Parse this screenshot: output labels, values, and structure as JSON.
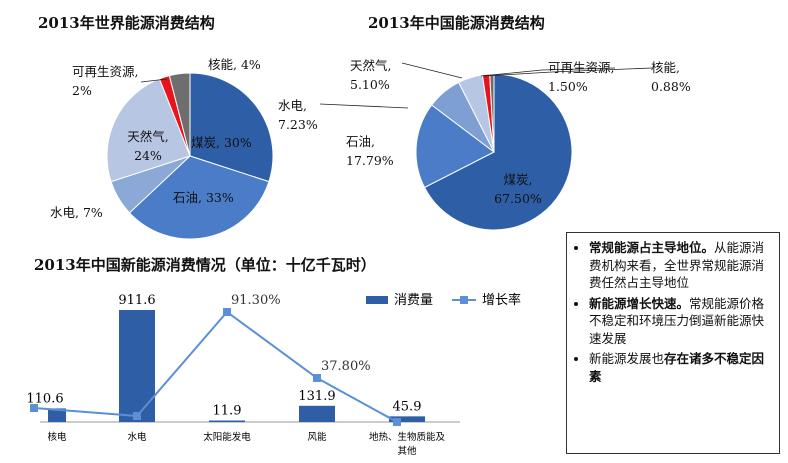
{
  "chart_data": [
    {
      "type": "pie",
      "title": "2013年世界能源消费结构",
      "slices": [
        {
          "label": "煤炭",
          "value": 30,
          "value_text": "30%",
          "color": "#2e5fa6"
        },
        {
          "label": "石油",
          "value": 33,
          "value_text": "33%",
          "color": "#4a7cc7"
        },
        {
          "label": "水电",
          "value": 7,
          "value_text": "7%",
          "color": "#8aa9d6"
        },
        {
          "label": "天然气",
          "value": 24,
          "value_text": "24%",
          "color": "#b7c6e2"
        },
        {
          "label": "可再生资源",
          "value": 2,
          "value_text": "2%",
          "color": "#e8141b"
        },
        {
          "label": "核能",
          "value": 4,
          "value_text": "4%",
          "color": "#6e6e6e"
        }
      ]
    },
    {
      "type": "pie",
      "title": "2013年中国能源消费结构",
      "slices": [
        {
          "label": "煤炭",
          "value": 67.5,
          "value_text": "67.50%",
          "color": "#2e5fa6"
        },
        {
          "label": "石油",
          "value": 17.79,
          "value_text": "17.79%",
          "color": "#4a7cc7"
        },
        {
          "label": "水电",
          "value": 7.23,
          "value_text": "7.23%",
          "color": "#7d9fd2"
        },
        {
          "label": "天然气",
          "value": 5.1,
          "value_text": "5.10%",
          "color": "#b7c6e2"
        },
        {
          "label": "可再生资源",
          "value": 1.5,
          "value_text": "1.50%",
          "color": "#e8141b"
        },
        {
          "label": "核能",
          "value": 0.88,
          "value_text": "0.88%",
          "color": "#6e6e6e"
        }
      ]
    },
    {
      "type": "bar",
      "title": "2013年中国新能源消费情况（单位：十亿千瓦时）",
      "categories": [
        "核电",
        "水电",
        "太阳能发电",
        "风能",
        "地热、生物质能及其他"
      ],
      "series": [
        {
          "name": "消费量",
          "kind": "bar",
          "values": [
            110.6,
            911.6,
            11.9,
            131.9,
            45.9
          ],
          "labels": [
            "110.6",
            "911.6",
            "11.9",
            "131.9",
            "45.9"
          ],
          "color": "#2e5fa6"
        },
        {
          "name": "增长率",
          "kind": "line",
          "values": [
            null,
            null,
            91.3,
            37.8,
            null
          ],
          "labels": [
            "",
            "",
            "91.30%",
            "37.80%",
            ""
          ],
          "color": "#5b8fd6"
        }
      ]
    }
  ],
  "notes": {
    "items": [
      {
        "bold": "常规能源占主导地位。",
        "text": "从能源消费机构来看，全世界常规能源消费任然占主导地位",
        "bold_tail": ""
      },
      {
        "bold": "新能源增长快速。",
        "text": "常规能源价格不稳定和环境压力倒逼新能源快速发展",
        "bold_tail": ""
      },
      {
        "bold": "",
        "text": "新能源发展也",
        "bold_tail": "存在诸多不稳定因素"
      }
    ]
  }
}
